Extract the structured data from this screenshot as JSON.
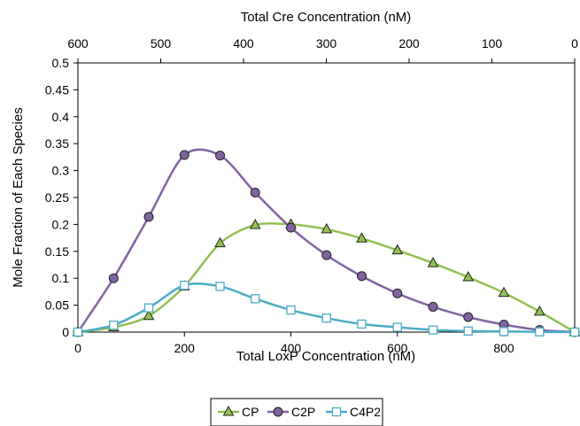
{
  "chart_data": {
    "type": "line",
    "xlabel": "Total LoxP Concentration (nM)",
    "ylabel": "Mole Fraction of Each Species",
    "x2label": "Total Cre Concentration (nM)",
    "xlim": [
      0,
      933
    ],
    "ylim": [
      0,
      0.5
    ],
    "x_ticks": [
      0,
      200,
      400,
      600,
      800
    ],
    "y_ticks": [
      0,
      0.05,
      0.1,
      0.15,
      0.2,
      0.25,
      0.3,
      0.35,
      0.4,
      0.45,
      0.5
    ],
    "x2_ticks": [
      600,
      500,
      400,
      300,
      200,
      100,
      0
    ],
    "x2_relation": "cre = (933 - loxp) * 0.6431",
    "grid": false,
    "legend_position": "bottom-center",
    "series": [
      {
        "name": "CP",
        "color": "#92C050",
        "marker": "triangle",
        "x": [
          0,
          67,
          133,
          200,
          267,
          333,
          400,
          467,
          533,
          600,
          667,
          733,
          800,
          867,
          933
        ],
        "y": [
          0,
          0.009,
          0.03,
          0.085,
          0.165,
          0.199,
          0.2,
          0.191,
          0.174,
          0.152,
          0.128,
          0.102,
          0.073,
          0.038,
          0
        ]
      },
      {
        "name": "C2P",
        "color": "#8064A2",
        "marker": "circle",
        "x": [
          0,
          67,
          133,
          200,
          267,
          333,
          400,
          467,
          533,
          600,
          667,
          733,
          800,
          867,
          933
        ],
        "y": [
          0,
          0.1,
          0.214,
          0.329,
          0.328,
          0.259,
          0.194,
          0.143,
          0.104,
          0.072,
          0.047,
          0.028,
          0.014,
          0.004,
          0
        ]
      },
      {
        "name": "C4P2",
        "color": "#4BACC6",
        "marker": "square",
        "x": [
          0,
          67,
          133,
          200,
          267,
          333,
          400,
          467,
          533,
          600,
          667,
          733,
          800,
          867,
          933
        ],
        "y": [
          0,
          0.013,
          0.045,
          0.087,
          0.085,
          0.062,
          0.041,
          0.026,
          0.015,
          0.009,
          0.004,
          0.002,
          0.001,
          0.0005,
          0
        ]
      }
    ]
  }
}
